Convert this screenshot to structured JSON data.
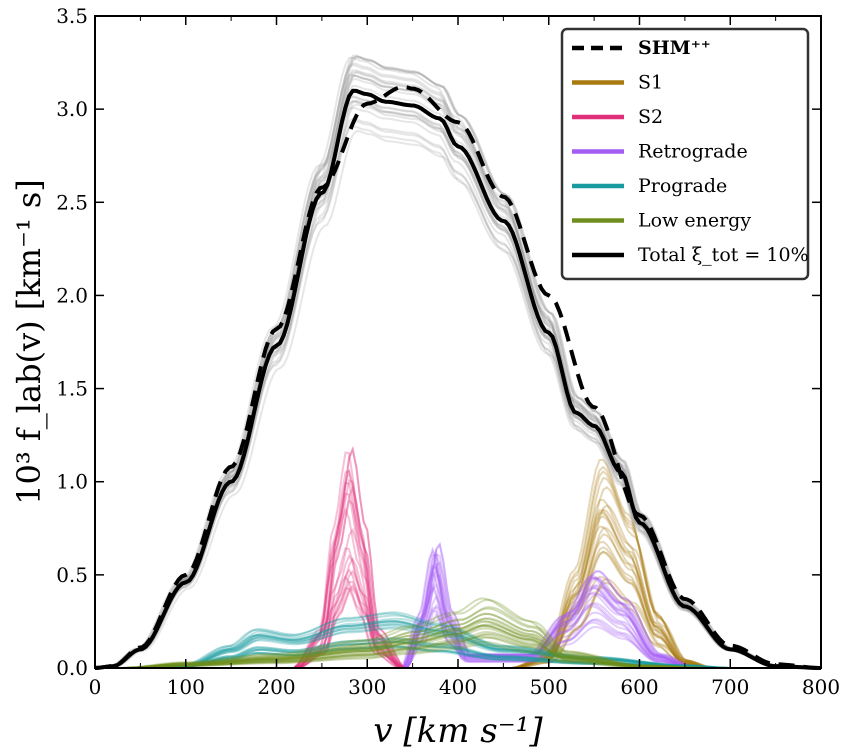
{
  "chart_data": {
    "type": "line",
    "xlabel": "v [km s⁻¹]",
    "ylabel": "10³ f_lab(v) [km⁻¹ s]",
    "xlim": [
      0,
      800
    ],
    "ylim": [
      0,
      3.5
    ],
    "x_ticks": [
      "0",
      "100",
      "200",
      "300",
      "400",
      "500",
      "600",
      "700",
      "800"
    ],
    "y_ticks": [
      "0.0",
      "0.5",
      "1.0",
      "1.5",
      "2.0",
      "2.5",
      "3.0",
      "3.5"
    ],
    "legend_position": "top-right",
    "legend": [
      {
        "label": "SHM⁺⁺",
        "color": "#000000",
        "style": "dashed"
      },
      {
        "label": "S1",
        "color": "#a87a10",
        "style": "solid"
      },
      {
        "label": "S2",
        "color": "#e0307a",
        "style": "solid"
      },
      {
        "label": "Retrograde",
        "color": "#a45cf5",
        "style": "solid"
      },
      {
        "label": "Prograde",
        "color": "#189aa0",
        "style": "solid"
      },
      {
        "label": "Low energy",
        "color": "#6e8f1c",
        "style": "solid"
      },
      {
        "label": "Total ξ_tot = 10%",
        "color": "#000000",
        "style": "solid"
      }
    ],
    "series": [
      {
        "name": "SHM⁺⁺",
        "color": "#000000",
        "style": "dashed",
        "x": [
          0,
          20,
          50,
          100,
          150,
          200,
          250,
          300,
          340,
          350,
          400,
          450,
          500,
          550,
          600,
          650,
          700,
          750,
          800
        ],
        "y": [
          0,
          0.01,
          0.11,
          0.5,
          1.08,
          1.82,
          2.58,
          3.03,
          3.12,
          3.11,
          2.93,
          2.53,
          2.0,
          1.4,
          0.82,
          0.37,
          0.12,
          0.02,
          0
        ]
      },
      {
        "name": "Total ξ_tot = 10%",
        "color": "#000000",
        "style": "solid",
        "x": [
          0,
          20,
          50,
          100,
          150,
          200,
          250,
          285,
          300,
          320,
          350,
          380,
          400,
          450,
          500,
          530,
          550,
          580,
          600,
          650,
          700,
          750,
          800
        ],
        "y": [
          0,
          0.01,
          0.1,
          0.46,
          1.0,
          1.73,
          2.55,
          3.1,
          3.08,
          3.04,
          3.02,
          2.95,
          2.8,
          2.4,
          1.8,
          1.37,
          1.3,
          1.05,
          0.78,
          0.33,
          0.1,
          0.01,
          0
        ]
      },
      {
        "name": "S1",
        "color": "#a87a10",
        "style": "solid",
        "x": [
          460,
          500,
          530,
          560,
          590,
          620,
          650,
          680
        ],
        "y": [
          0,
          0.05,
          0.35,
          0.75,
          0.55,
          0.2,
          0.03,
          0
        ]
      },
      {
        "name": "S2",
        "color": "#e0307a",
        "style": "solid",
        "x": [
          220,
          250,
          265,
          280,
          295,
          310,
          340
        ],
        "y": [
          0,
          0.15,
          0.55,
          0.85,
          0.55,
          0.15,
          0
        ]
      },
      {
        "name": "Retrograde",
        "color": "#a45cf5",
        "style": "solid",
        "x": [
          340,
          360,
          375,
          390,
          410,
          480,
          520,
          550,
          580,
          620,
          660
        ],
        "y": [
          0,
          0.2,
          0.45,
          0.2,
          0.05,
          0.05,
          0.2,
          0.35,
          0.25,
          0.05,
          0
        ]
      },
      {
        "name": "Prograde",
        "color": "#189aa0",
        "style": "solid",
        "x": [
          50,
          100,
          150,
          180,
          220,
          280,
          330,
          380,
          450,
          550,
          650,
          700
        ],
        "y": [
          0,
          0.01,
          0.08,
          0.14,
          0.12,
          0.18,
          0.2,
          0.16,
          0.08,
          0.04,
          0.01,
          0
        ]
      },
      {
        "name": "Low energy",
        "color": "#6e8f1c",
        "style": "solid",
        "x": [
          30,
          100,
          200,
          300,
          350,
          400,
          430,
          480,
          520,
          600,
          680
        ],
        "y": [
          0,
          0.02,
          0.05,
          0.1,
          0.15,
          0.2,
          0.25,
          0.17,
          0.06,
          0.01,
          0
        ]
      }
    ]
  }
}
